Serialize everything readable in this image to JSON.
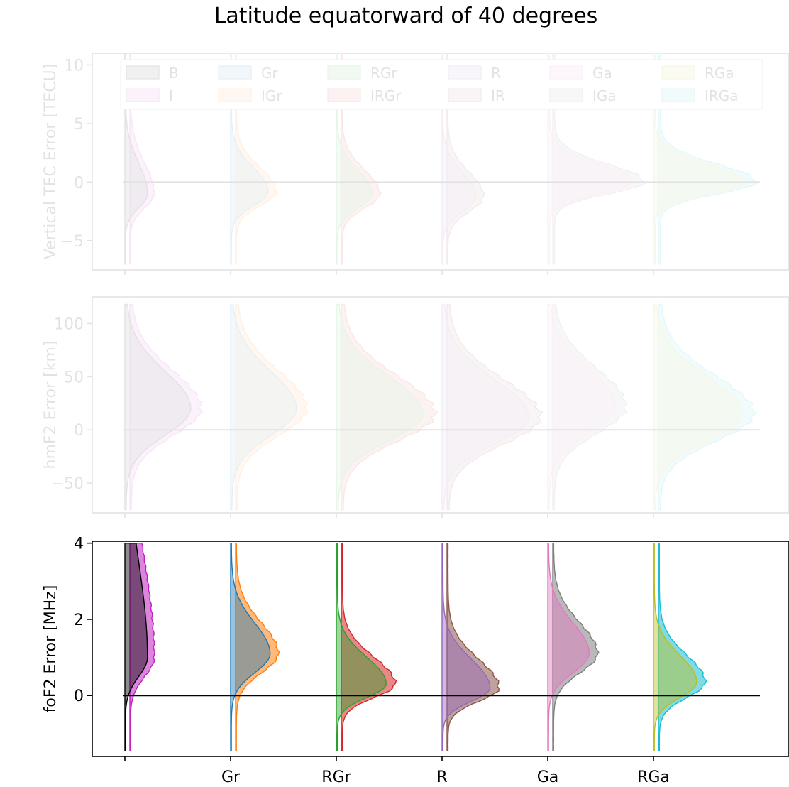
{
  "title": "Latitude equatorward of 40 degrees",
  "colors": {
    "B": "#000000",
    "Gr": "#1f77b4",
    "RGr": "#2ca02c",
    "R": "#9467bd",
    "Ga": "#e377c2",
    "RGa": "#bcbd22",
    "I": "#c020c0",
    "IGr": "#ff7f0e",
    "IRGr": "#d62728",
    "IR": "#8c564b",
    "IGa": "#7f7f7f",
    "IRGa": "#17becf"
  },
  "chart_data": [
    {
      "type": "violin",
      "ylabel": "Vertical TEC Error [TECU]",
      "ylim": [
        -7.5,
        11
      ],
      "yticks": [
        10,
        5,
        0,
        -5
      ],
      "ytick_labels": [
        "10",
        "5",
        "0",
        "−5"
      ],
      "faded": true,
      "reference_line_y": 0,
      "legend": {
        "placement": "top",
        "entries": [
          [
            "B",
            "B"
          ],
          [
            "Gr",
            "Gr"
          ],
          [
            "RGr",
            "RGr"
          ],
          [
            "R",
            "R"
          ],
          [
            "Ga",
            "Ga"
          ],
          [
            "RGa",
            "RGa"
          ],
          [
            "I",
            "I"
          ],
          [
            "IGr",
            "IGr"
          ],
          [
            "IRGr",
            "IRGr"
          ],
          [
            "IR",
            "IR"
          ],
          [
            "IGa",
            "IGa"
          ],
          [
            "IRGa",
            "IRGa"
          ]
        ]
      },
      "groups": [
        {
          "x_label": "",
          "base": "B",
          "aug": "I",
          "range": [
            -7,
            11
          ],
          "mode": -1,
          "peak": 1.2,
          "sd_lo": 1.2,
          "sd_hi": 2.6
        },
        {
          "x_label": "Gr",
          "base": "Gr",
          "aug": "IGr",
          "range": [
            -7,
            11
          ],
          "mode": -0.8,
          "peak": 2.0,
          "sd_lo": 1.2,
          "sd_hi": 2.0
        },
        {
          "x_label": "RGr",
          "base": "RGr",
          "aug": "IRGr",
          "range": [
            -7,
            11
          ],
          "mode": -1,
          "peak": 1.9,
          "sd_lo": 1.2,
          "sd_hi": 2.0
        },
        {
          "x_label": "R",
          "base": "R",
          "aug": "IR",
          "range": [
            -7,
            11
          ],
          "mode": -1.2,
          "peak": 1.8,
          "sd_lo": 1.3,
          "sd_hi": 2.0
        },
        {
          "x_label": "Ga",
          "base": "Ga",
          "aug": "IGa",
          "range": [
            -7,
            11
          ],
          "mode": 0,
          "peak": 4.5,
          "sd_lo": 1.0,
          "sd_hi": 1.5
        },
        {
          "x_label": "RGa",
          "base": "RGa",
          "aug": "IRGa",
          "range": [
            -7,
            11
          ],
          "mode": 0,
          "peak": 4.8,
          "sd_lo": 1.0,
          "sd_hi": 1.5
        }
      ]
    },
    {
      "type": "violin",
      "ylabel": "hmF2 Error [km]",
      "ylim": [
        -78,
        125
      ],
      "yticks": [
        100,
        50,
        0,
        -50
      ],
      "ytick_labels": [
        "100",
        "50",
        "0",
        "−50"
      ],
      "faded": true,
      "reference_line_y": 0,
      "groups": [
        {
          "x_label": "",
          "base": "B",
          "aug": "I",
          "range": [
            -75,
            118
          ],
          "mode": 20,
          "peak": 3.5,
          "sd_lo": 25,
          "sd_hi": 35
        },
        {
          "x_label": "Gr",
          "base": "Gr",
          "aug": "IGr",
          "range": [
            -75,
            118
          ],
          "mode": 20,
          "peak": 3.5,
          "sd_lo": 25,
          "sd_hi": 35
        },
        {
          "x_label": "RGr",
          "base": "RGr",
          "aug": "IRGr",
          "range": [
            -75,
            118
          ],
          "mode": 15,
          "peak": 4.6,
          "sd_lo": 25,
          "sd_hi": 35
        },
        {
          "x_label": "R",
          "base": "R",
          "aug": "IR",
          "range": [
            -75,
            118
          ],
          "mode": 12,
          "peak": 4.6,
          "sd_lo": 25,
          "sd_hi": 35
        },
        {
          "x_label": "Ga",
          "base": "Ga",
          "aug": "IGa",
          "range": [
            -75,
            118
          ],
          "mode": 22,
          "peak": 3.6,
          "sd_lo": 25,
          "sd_hi": 35
        },
        {
          "x_label": "RGa",
          "base": "RGa",
          "aug": "IRGa",
          "range": [
            -75,
            118
          ],
          "mode": 15,
          "peak": 4.7,
          "sd_lo": 25,
          "sd_hi": 35
        }
      ]
    },
    {
      "type": "violin",
      "ylabel": "foF2 Error [MHz]",
      "ylim": [
        -1.6,
        4.05
      ],
      "yticks": [
        4,
        2,
        0
      ],
      "ytick_labels": [
        "4",
        "2",
        "0"
      ],
      "faded": false,
      "reference_line_y": 0,
      "x_tick_labels": [
        "",
        "Gr",
        "RGr",
        "R",
        "Ga",
        "RGa"
      ],
      "groups": [
        {
          "x_label": "",
          "base": "B",
          "aug": "I",
          "range": [
            -1.45,
            4
          ],
          "mode": 1.0,
          "peak": 1.2,
          "sd_lo": 0.5,
          "sd_hi": 2.5
        },
        {
          "x_label": "Gr",
          "base": "Gr",
          "aug": "IGr",
          "range": [
            -1.45,
            4
          ],
          "mode": 1.1,
          "peak": 2.1,
          "sd_lo": 0.5,
          "sd_hi": 0.8
        },
        {
          "x_label": "RGr",
          "base": "RGr",
          "aug": "IRGr",
          "range": [
            -1.45,
            4
          ],
          "mode": 0.3,
          "peak": 2.65,
          "sd_lo": 0.35,
          "sd_hi": 0.7
        },
        {
          "x_label": "R",
          "base": "R",
          "aug": "IR",
          "range": [
            -1.45,
            4
          ],
          "mode": 0.2,
          "peak": 2.55,
          "sd_lo": 0.35,
          "sd_hi": 0.75
        },
        {
          "x_label": "Ga",
          "base": "Ga",
          "aug": "IGa",
          "range": [
            -1.45,
            4
          ],
          "mode": 1.1,
          "peak": 2.2,
          "sd_lo": 0.5,
          "sd_hi": 0.8
        },
        {
          "x_label": "RGa",
          "base": "RGa",
          "aug": "IRGa",
          "range": [
            -1.45,
            4
          ],
          "mode": 0.35,
          "peak": 2.3,
          "sd_lo": 0.4,
          "sd_hi": 0.7
        }
      ]
    }
  ]
}
